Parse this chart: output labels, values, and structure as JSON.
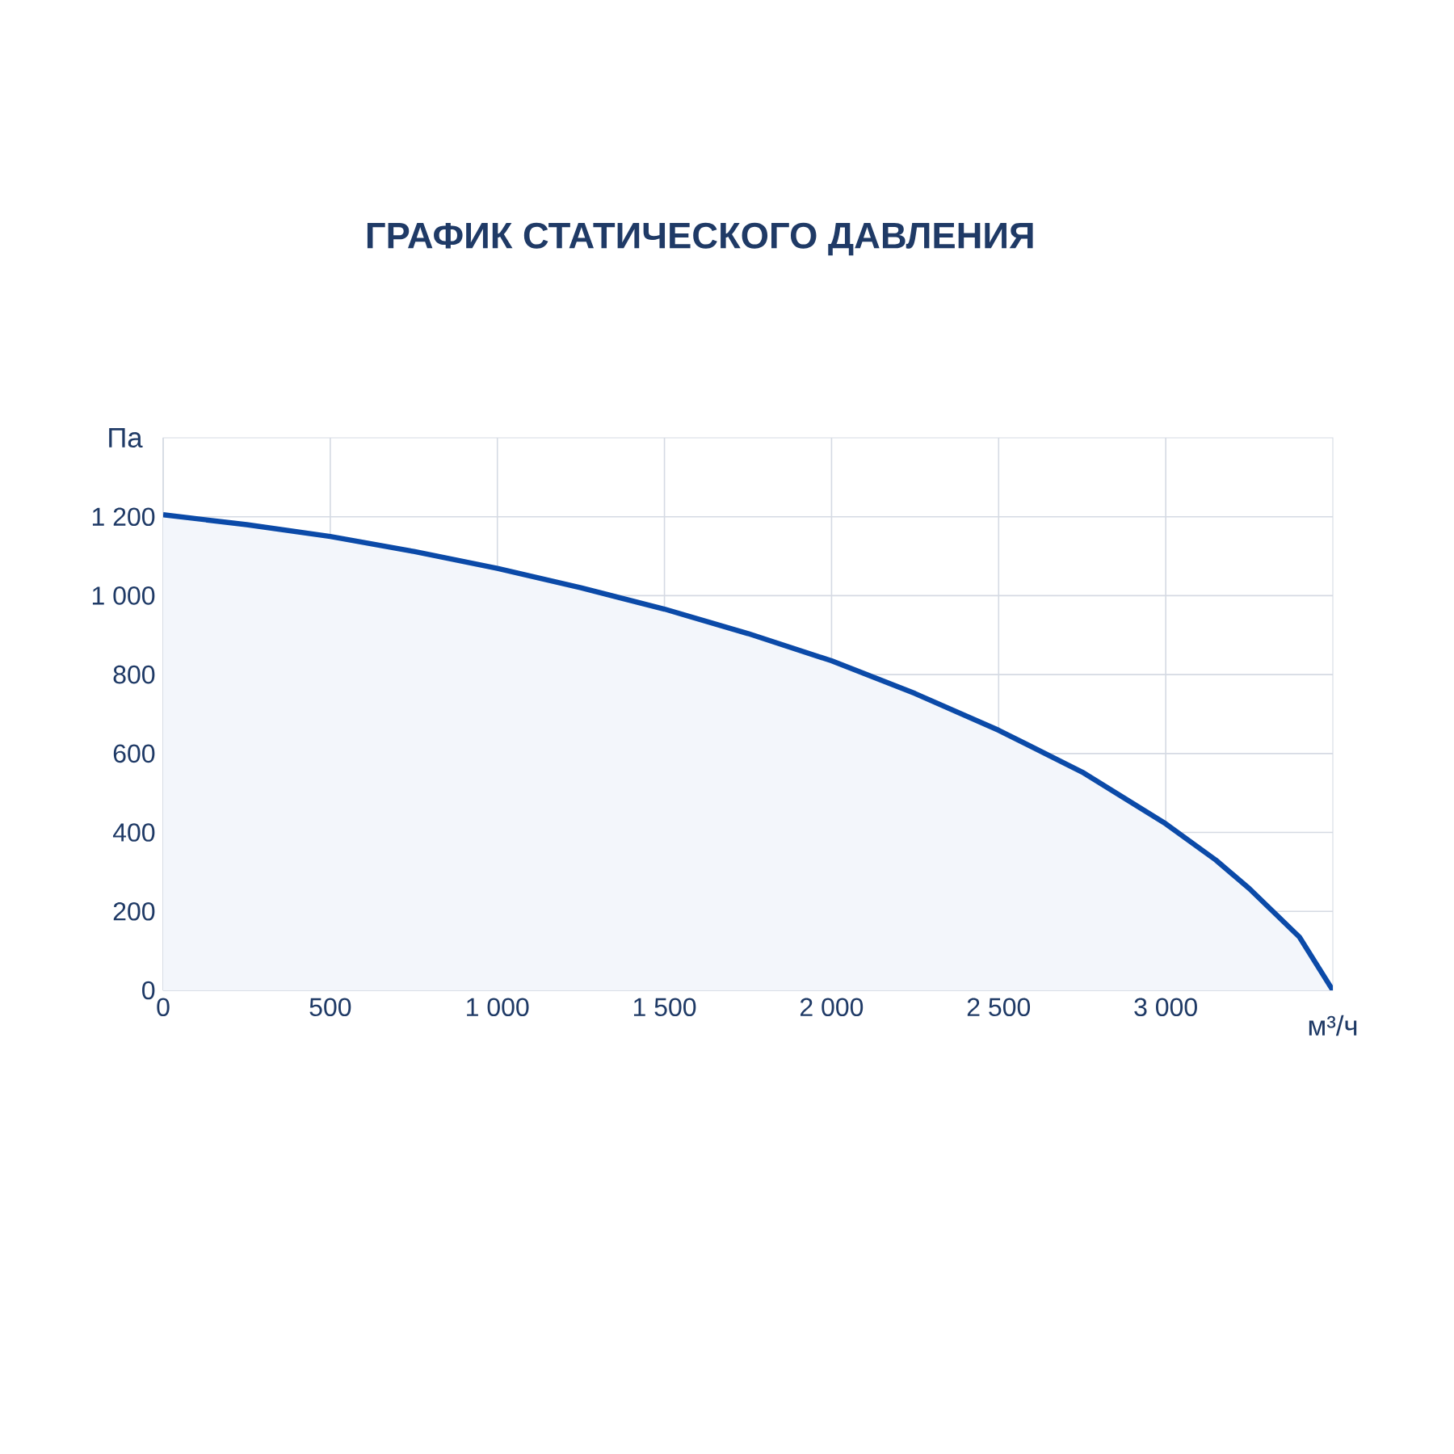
{
  "chart_data": {
    "type": "area",
    "title": "ГРАФИК СТАТИЧЕСКОГО ДАВЛЕНИЯ",
    "xlabel": "м³/ч",
    "ylabel": "Па",
    "x": [
      0,
      250,
      500,
      750,
      1000,
      1250,
      1500,
      1750,
      2000,
      2250,
      2500,
      2750,
      3000,
      3150,
      3250,
      3400,
      3500
    ],
    "series": [
      {
        "color": "#0b4aa8",
        "values": [
          1205,
          1180,
          1150,
          1112,
          1069,
          1020,
          966,
          904,
          835,
          752,
          659,
          553,
          422,
          330,
          258,
          135,
          0
        ]
      }
    ],
    "xlim": [
      0,
      3500
    ],
    "ylim": [
      0,
      1400
    ],
    "xticks": [
      {
        "value": 0,
        "label": "0"
      },
      {
        "value": 500,
        "label": "500"
      },
      {
        "value": 1000,
        "label": "1 000"
      },
      {
        "value": 1500,
        "label": "1 500"
      },
      {
        "value": 2000,
        "label": "2 000"
      },
      {
        "value": 2500,
        "label": "2 500"
      },
      {
        "value": 3000,
        "label": "3 000"
      }
    ],
    "yticks": [
      {
        "value": 0,
        "label": "0"
      },
      {
        "value": 200,
        "label": "200"
      },
      {
        "value": 400,
        "label": "400"
      },
      {
        "value": 600,
        "label": "600"
      },
      {
        "value": 800,
        "label": "800"
      },
      {
        "value": 1000,
        "label": "1 000"
      },
      {
        "value": 1200,
        "label": "1 200"
      }
    ],
    "grid": true,
    "marker": "none",
    "line_style": "solid"
  }
}
